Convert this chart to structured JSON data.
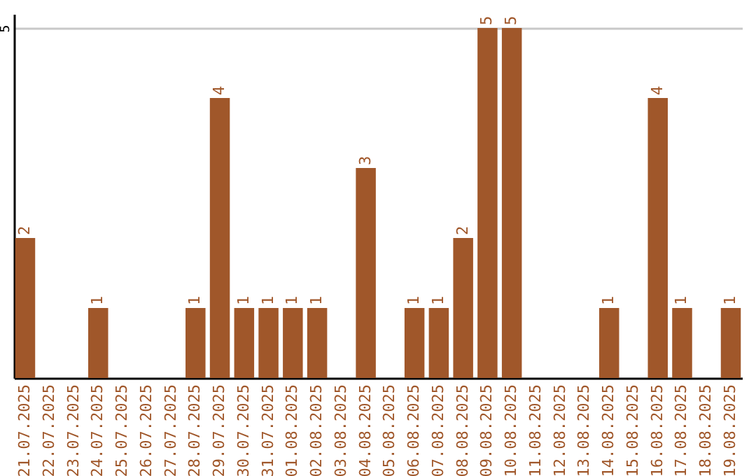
{
  "chart_data": {
    "type": "bar",
    "categories": [
      "21.07.2025",
      "22.07.2025",
      "23.07.2025",
      "24.07.2025",
      "25.07.2025",
      "26.07.2025",
      "27.07.2025",
      "28.07.2025",
      "29.07.2025",
      "30.07.2025",
      "31.07.2025",
      "01.08.2025",
      "02.08.2025",
      "03.08.2025",
      "04.08.2025",
      "05.08.2025",
      "06.08.2025",
      "07.08.2025",
      "08.08.2025",
      "09.08.2025",
      "10.08.2025",
      "11.08.2025",
      "12.08.2025",
      "13.08.2025",
      "14.08.2025",
      "15.08.2025",
      "16.08.2025",
      "17.08.2025",
      "18.08.2025",
      "19.08.2025"
    ],
    "values": [
      2,
      0,
      0,
      1,
      0,
      0,
      0,
      1,
      4,
      1,
      1,
      1,
      1,
      0,
      3,
      0,
      1,
      1,
      2,
      5,
      5,
      0,
      0,
      0,
      1,
      0,
      4,
      1,
      0,
      1
    ],
    "value_labels": [
      "2",
      null,
      null,
      "1",
      null,
      null,
      null,
      "1",
      "4",
      "1",
      "1",
      "1",
      "1",
      null,
      "3",
      null,
      "1",
      "1",
      "2",
      "5",
      "5",
      null,
      null,
      null,
      "1",
      null,
      "4",
      "1",
      null,
      "1"
    ],
    "color": "#a0572a",
    "ylim": [
      0,
      5.2
    ],
    "yticks": [
      5
    ],
    "grid": "y"
  }
}
